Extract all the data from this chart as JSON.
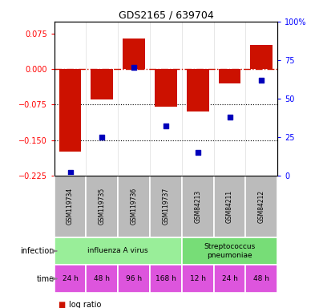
{
  "title": "GDS2165 / 639704",
  "samples": [
    "GSM119734",
    "GSM119735",
    "GSM119736",
    "GSM119737",
    "GSM84213",
    "GSM84211",
    "GSM84212"
  ],
  "log_ratio": [
    -0.175,
    -0.065,
    0.065,
    -0.08,
    -0.09,
    -0.03,
    0.05
  ],
  "percentile_rank": [
    2,
    25,
    70,
    32,
    15,
    38,
    62
  ],
  "ylim_left": [
    -0.225,
    0.1
  ],
  "ylim_right": [
    0,
    100
  ],
  "left_ticks": [
    0.075,
    0,
    -0.075,
    -0.15,
    -0.225
  ],
  "right_ticks": [
    100,
    75,
    50,
    25,
    0
  ],
  "right_tick_labels": [
    "100%",
    "75",
    "50",
    "25",
    "0"
  ],
  "infection_groups": [
    {
      "label": "influenza A virus",
      "start": 0,
      "end": 4,
      "color": "#99ee99"
    },
    {
      "label": "Streptococcus\npneumoniae",
      "start": 4,
      "end": 7,
      "color": "#77dd77"
    }
  ],
  "time_labels": [
    "24 h",
    "48 h",
    "96 h",
    "168 h",
    "12 h",
    "24 h",
    "48 h"
  ],
  "time_bg_color": "#dd55dd",
  "gsm_bg_color": "#bbbbbb",
  "bar_color": "#cc1100",
  "dot_color": "#0000bb",
  "hline_color": "#cc1100",
  "legend_bar_color": "#cc1100",
  "legend_dot_color": "#0000bb"
}
